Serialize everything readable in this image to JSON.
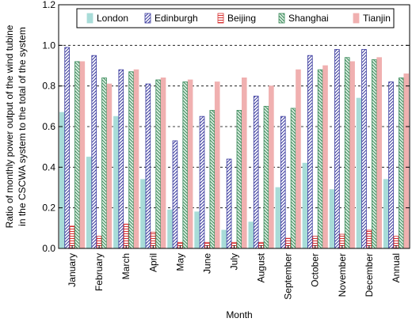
{
  "chart_data": {
    "type": "bar",
    "xlabel": "Month",
    "ylabel_lines": [
      "Ratio of monthly power output of the wind tubine",
      "in the CSCWA system to the total of the system"
    ],
    "ylim": [
      0,
      1.2
    ],
    "yticks": [
      "0.0",
      "0.2",
      "0.4",
      "0.6",
      "0.8",
      "1.0",
      "1.2"
    ],
    "grid": "horizontal dashed at 0.2 intervals",
    "legend_position": "top",
    "categories": [
      "January",
      "February",
      "March",
      "April",
      "May",
      "June",
      "July",
      "August",
      "September",
      "October",
      "November",
      "December",
      "Annual"
    ],
    "series": [
      {
        "name": "London",
        "color": "#a8dcd8",
        "pattern": "solid",
        "values": [
          0.67,
          0.45,
          0.65,
          0.34,
          0.19,
          0.18,
          0.09,
          0.13,
          0.3,
          0.42,
          0.29,
          0.74,
          0.34
        ]
      },
      {
        "name": "Edinburgh",
        "color": "#3a3a9e",
        "pattern": "diagonal",
        "values": [
          0.99,
          0.95,
          0.88,
          0.81,
          0.53,
          0.65,
          0.44,
          0.75,
          0.65,
          0.95,
          0.98,
          0.98,
          0.82
        ]
      },
      {
        "name": "Beijing",
        "color": "#d83030",
        "pattern": "horizontal",
        "values": [
          0.11,
          0.06,
          0.12,
          0.08,
          0.03,
          0.03,
          0.03,
          0.03,
          0.05,
          0.06,
          0.07,
          0.09,
          0.06
        ]
      },
      {
        "name": "Shanghai",
        "color": "#3a8a5a",
        "pattern": "backdiagonal",
        "values": [
          0.92,
          0.84,
          0.87,
          0.83,
          0.82,
          0.68,
          0.68,
          0.7,
          0.69,
          0.88,
          0.94,
          0.93,
          0.84
        ]
      },
      {
        "name": "Tianjin",
        "color": "#f0b0b0",
        "pattern": "solid",
        "values": [
          0.92,
          0.81,
          0.88,
          0.84,
          0.83,
          0.82,
          0.84,
          0.8,
          0.88,
          0.9,
          0.92,
          0.94,
          0.86
        ]
      }
    ]
  }
}
